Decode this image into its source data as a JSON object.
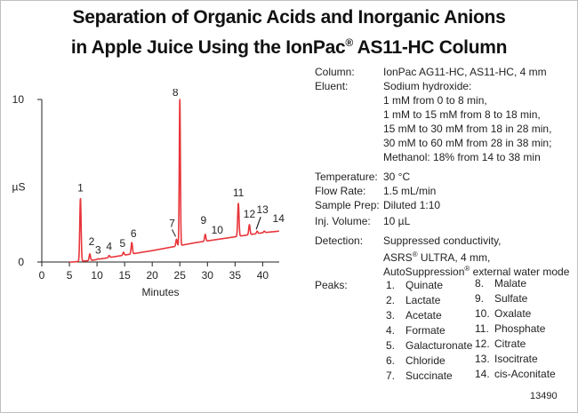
{
  "title": {
    "line1": "Separation of Organic Acids and Inorganic Anions",
    "line2a": "in Apple Juice Using the IonPac",
    "reg": "®",
    "line2b": " AS11-HC Column"
  },
  "conditions": {
    "column": {
      "label": "Column:",
      "value": "IonPac AG11-HC, AS11-HC, 4 mm"
    },
    "eluent": {
      "label": "Eluent:",
      "lines": [
        "Sodium hydroxide:",
        "1 mM from 0 to 8 min,",
        "1 mM to 15 mM from 8 to 18 min,",
        "15 mM to 30 mM from 18 in 28 min,",
        "30 mM to 60 mM from 28 in 38 min;",
        "Methanol:  18% from 14 to 38 min"
      ]
    },
    "temperature": {
      "label": "Temperature:",
      "value": "30 °C"
    },
    "flow_rate": {
      "label": "Flow Rate:",
      "value": "1.5 mL/min"
    },
    "sample_prep": {
      "label": "Sample Prep:",
      "value": "Diluted 1:10"
    },
    "inj_volume": {
      "label": "Inj. Volume:",
      "value": "10 µL"
    },
    "detection": {
      "label": "Detection:",
      "line1": "Suppressed conductivity,",
      "line2a": "ASRS",
      "line2b": " ULTRA, 4 mm,",
      "line3a": "AutoSuppression",
      "line3b": " external water mode",
      "reg": "®"
    },
    "peaks_label": "Peaks:"
  },
  "peaks_left": [
    {
      "num": "1.",
      "name": "Quinate"
    },
    {
      "num": "2.",
      "name": "Lactate"
    },
    {
      "num": "3.",
      "name": "Acetate"
    },
    {
      "num": "4.",
      "name": "Formate"
    },
    {
      "num": "5.",
      "name": "Galacturonate"
    },
    {
      "num": "6.",
      "name": "Chloride"
    },
    {
      "num": "7.",
      "name": "Succinate"
    }
  ],
  "peaks_right": [
    {
      "num": "8.",
      "name": "Malate"
    },
    {
      "num": "9.",
      "name": "Sulfate"
    },
    {
      "num": "10.",
      "name": "Oxalate"
    },
    {
      "num": "11.",
      "name": "Phosphate"
    },
    {
      "num": "12.",
      "name": "Citrate"
    },
    {
      "num": "13.",
      "name": "Isocitrate"
    },
    {
      "num": "14.",
      "name": "cis-Aconitate"
    }
  ],
  "figure_id": "13490",
  "chart_data": {
    "type": "line",
    "xlabel": "Minutes",
    "ylabel": "µS",
    "xlim": [
      0,
      43
    ],
    "ylim": [
      0,
      10
    ],
    "xticks": [
      0,
      5,
      10,
      15,
      20,
      25,
      30,
      35,
      40
    ],
    "yticks": [
      0,
      10
    ],
    "color": "#e8353a",
    "grid": false,
    "baseline": [
      [
        5.5,
        0.0
      ],
      [
        9,
        0.1
      ],
      [
        20,
        0.7
      ],
      [
        28,
        1.2
      ],
      [
        40,
        1.8
      ],
      [
        43,
        1.9
      ]
    ],
    "peaks": [
      {
        "label": "1",
        "x": 7.0,
        "y": 3.9
      },
      {
        "label": "2",
        "x": 8.7,
        "y": 0.5
      },
      {
        "label": "3",
        "x": 10.2,
        "y": 0.2
      },
      {
        "label": "4",
        "x": 12.2,
        "y": 0.4
      },
      {
        "label": "5",
        "x": 14.8,
        "y": 0.6
      },
      {
        "label": "6",
        "x": 16.3,
        "y": 1.2
      },
      {
        "label": "7",
        "x": 24.4,
        "y": 1.4
      },
      {
        "label": "8",
        "x": 25.0,
        "y": 10.0
      },
      {
        "label": "9",
        "x": 29.6,
        "y": 1.7
      },
      {
        "label": "10",
        "x": 30.8,
        "y": 1.3
      },
      {
        "label": "11",
        "x": 35.6,
        "y": 3.6
      },
      {
        "label": "12",
        "x": 37.6,
        "y": 2.3
      },
      {
        "label": "13",
        "x": 39.0,
        "y": 1.9
      },
      {
        "label": "14",
        "x": 40.3,
        "y": 1.9
      }
    ]
  }
}
